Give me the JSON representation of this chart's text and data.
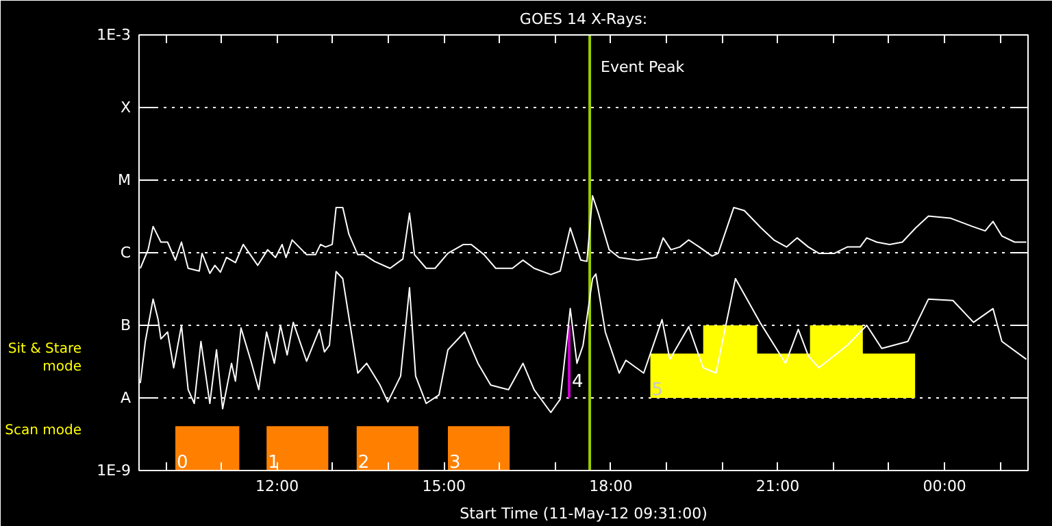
{
  "chart_data": {
    "type": "line",
    "title": "GOES 14 X-Rays:",
    "xlabel": "Start Time (11-May-12 09:31:00)",
    "log": "y",
    "grid": "y",
    "line_style": "solid",
    "xlim": [
      9.517,
      25.5
    ],
    "xticks": [
      {
        "value": 10,
        "label": null
      },
      {
        "value": 11,
        "label": null
      },
      {
        "value": 12,
        "label": "12:00"
      },
      {
        "value": 13,
        "label": null
      },
      {
        "value": 14,
        "label": null
      },
      {
        "value": 15,
        "label": "15:00"
      },
      {
        "value": 16,
        "label": null
      },
      {
        "value": 17,
        "label": null
      },
      {
        "value": 18,
        "label": "18:00"
      },
      {
        "value": 19,
        "label": null
      },
      {
        "value": 20,
        "label": null
      },
      {
        "value": 21,
        "label": "21:00"
      },
      {
        "value": 22,
        "label": null
      },
      {
        "value": 23,
        "label": null
      },
      {
        "value": 24,
        "label": "00:00"
      },
      {
        "value": 25,
        "label": null
      }
    ],
    "ylim": [
      1e-09,
      0.001
    ],
    "yticks": [
      {
        "value": 1e-09,
        "label": "1E-9"
      },
      {
        "value": 1e-08,
        "label": "A"
      },
      {
        "value": 1e-07,
        "label": "B"
      },
      {
        "value": 1e-06,
        "label": "C"
      },
      {
        "value": 1e-05,
        "label": "M"
      },
      {
        "value": 0.0001,
        "label": "X"
      },
      {
        "value": 0.001,
        "label": "1E-3"
      }
    ],
    "series": [
      {
        "color": "#ffffff",
        "x": [
          9.54,
          9.68,
          9.77,
          9.91,
          10.03,
          10.17,
          10.28,
          10.4,
          10.6,
          10.65,
          10.79,
          10.88,
          10.98,
          11.09,
          11.25,
          11.39,
          11.65,
          11.83,
          11.97,
          12.09,
          12.16,
          12.27,
          12.53,
          12.69,
          12.78,
          12.87,
          12.99,
          13.06,
          13.18,
          13.29,
          13.45,
          13.57,
          13.75,
          14.03,
          14.26,
          14.38,
          14.47,
          14.68,
          14.84,
          15.07,
          15.35,
          15.49,
          15.72,
          15.93,
          16.23,
          16.42,
          16.62,
          16.92,
          17.09,
          17.27,
          17.46,
          17.57,
          17.67,
          17.78,
          17.97,
          18.15,
          18.48,
          18.82,
          18.94,
          19.08,
          19.24,
          19.4,
          19.59,
          19.82,
          19.93,
          20.21,
          20.4,
          20.7,
          20.93,
          21.16,
          21.35,
          21.55,
          21.74,
          22.02,
          22.25,
          22.48,
          22.6,
          22.78,
          23.01,
          23.24,
          23.48,
          23.71,
          24.1,
          24.5,
          24.73,
          24.87,
          25.03,
          25.26,
          25.47
        ],
        "values": [
          6.1e-07,
          1.1e-06,
          2.3e-06,
          1.4e-06,
          1.4e-06,
          7.9e-07,
          1.4e-06,
          6.1e-07,
          5.6e-07,
          9.8e-07,
          5.2e-07,
          6.7e-07,
          5.4e-07,
          8.6e-07,
          7.3e-07,
          1.3e-06,
          6.7e-07,
          1.1e-06,
          8.6e-07,
          1.3e-06,
          8.6e-07,
          1.5e-06,
          9.4e-07,
          9.4e-07,
          1.3e-06,
          1.2e-06,
          1.3e-06,
          4.2e-06,
          4.2e-06,
          1.8e-06,
          9.4e-07,
          9.4e-07,
          7.6e-07,
          6.1e-07,
          8.2e-07,
          3.5e-06,
          9.4e-07,
          6.1e-07,
          6.1e-07,
          9.8e-07,
          1.3e-06,
          1.3e-06,
          9.4e-07,
          6.1e-07,
          6.1e-07,
          7.9e-07,
          6.1e-07,
          5e-07,
          5.6e-07,
          2.2e-06,
          7.9e-07,
          7.6e-07,
          6.1e-06,
          3.4e-06,
          1.1e-06,
          8.6e-07,
          7.9e-07,
          8.6e-07,
          1.6e-06,
          1.1e-06,
          1.2e-06,
          1.5e-06,
          1.2e-06,
          9e-07,
          9.8e-07,
          4.2e-06,
          3.8e-06,
          2.2e-06,
          1.5e-06,
          1.2e-06,
          1.6e-06,
          1.2e-06,
          9.8e-07,
          9.8e-07,
          1.2e-06,
          1.2e-06,
          1.6e-06,
          1.4e-06,
          1.3e-06,
          1.4e-06,
          2.2e-06,
          3.2e-06,
          3e-06,
          2.3e-06,
          2e-06,
          2.7e-06,
          1.7e-06,
          1.4e-06,
          1.4e-06
        ]
      },
      {
        "color": "#ffffff",
        "x": [
          9.54,
          9.63,
          9.77,
          9.86,
          9.91,
          10.03,
          10.14,
          10.28,
          10.4,
          10.51,
          10.63,
          10.79,
          10.91,
          11.02,
          11.18,
          11.25,
          11.35,
          11.53,
          11.67,
          11.81,
          11.95,
          12.06,
          12.18,
          12.29,
          12.53,
          12.76,
          12.85,
          12.94,
          13.06,
          13.18,
          13.45,
          13.61,
          13.85,
          13.99,
          14.22,
          14.38,
          14.49,
          14.68,
          14.91,
          15.07,
          15.37,
          15.61,
          15.84,
          16.16,
          16.42,
          16.62,
          16.92,
          17.09,
          17.27,
          17.39,
          17.5,
          17.67,
          17.73,
          17.9,
          18.15,
          18.27,
          18.59,
          18.92,
          19.06,
          19.4,
          19.66,
          19.89,
          20.24,
          20.68,
          21.14,
          21.37,
          21.55,
          21.74,
          22.25,
          22.6,
          22.87,
          23.34,
          23.71,
          24.15,
          24.52,
          24.87,
          25.03,
          25.47
        ],
        "values": [
          1.6e-08,
          6e-08,
          2.3e-07,
          1.2e-07,
          6.5e-08,
          8.1e-08,
          2.6e-08,
          1e-07,
          1.3e-08,
          8.4e-09,
          6e-08,
          8.4e-09,
          4.6e-08,
          7.1e-09,
          3e-08,
          1.7e-08,
          9.2e-08,
          3.2e-08,
          1.3e-08,
          8.1e-08,
          3e-08,
          1e-07,
          3.9e-08,
          1.1e-07,
          3.2e-08,
          8.8e-08,
          4.3e-08,
          5.3e-08,
          5.5e-07,
          4.4e-07,
          2.2e-08,
          3e-08,
          1.5e-08,
          8.8e-09,
          2e-08,
          3.3e-07,
          2e-08,
          8.4e-09,
          1.1e-08,
          4.6e-08,
          8.1e-08,
          3e-08,
          1.5e-08,
          1.3e-08,
          3e-08,
          1.3e-08,
          6.3e-09,
          9.6e-09,
          1.7e-07,
          3e-08,
          5.3e-08,
          4.4e-07,
          5.1e-07,
          8.1e-08,
          2.2e-08,
          3.3e-08,
          2.2e-08,
          1.2e-07,
          3.4e-08,
          9.6e-08,
          2.6e-08,
          2.2e-08,
          4.4e-07,
          1.1e-07,
          3e-08,
          8.8e-08,
          3.8e-08,
          2.6e-08,
          5.3e-08,
          1e-07,
          4.8e-08,
          6e-08,
          2.3e-07,
          2.2e-07,
          1.1e-07,
          1.7e-07,
          6e-08,
          3.4e-08
        ]
      }
    ],
    "bands": [
      {
        "axis": "x",
        "from": 10.17,
        "to": 11.32,
        "label": "0",
        "color": "#ff8000"
      },
      {
        "axis": "x",
        "from": 11.81,
        "to": 12.92,
        "label": "1",
        "color": "#ff8000"
      },
      {
        "axis": "x",
        "from": 13.43,
        "to": 14.54,
        "label": "2",
        "color": "#ff8000"
      },
      {
        "axis": "x",
        "from": 15.07,
        "to": 16.18,
        "label": "3",
        "color": "#ff8000"
      },
      {
        "axis": "x",
        "from": 18.71,
        "to": 23.47,
        "label": "5",
        "color": "#ffff00"
      },
      {
        "axis": "x",
        "from": 19.66,
        "to": 20.63,
        "color": "#ffff00"
      },
      {
        "axis": "x",
        "from": 21.58,
        "to": 22.53,
        "color": "#ffff00"
      }
    ],
    "ref_lines": [
      {
        "axis": "x",
        "value": 17.62,
        "label": "Event Peak",
        "color": "#99cc00"
      },
      {
        "axis": "x",
        "value": 17.25,
        "color": "#cc00cc"
      }
    ],
    "annotations": [
      "Scan mode",
      "Sit & Stare mode",
      "4"
    ]
  }
}
